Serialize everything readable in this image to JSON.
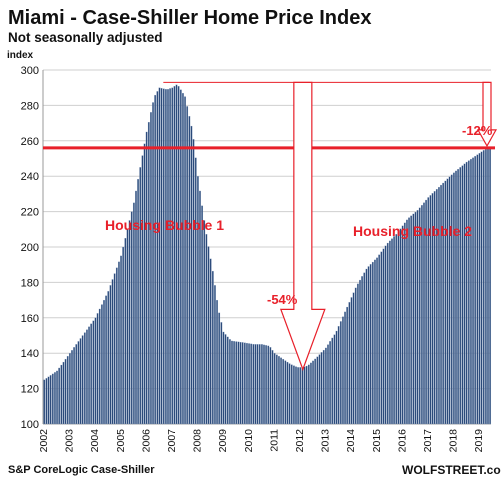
{
  "chart_data": {
    "type": "bar",
    "title": "Miami - Case-Shiller Home Price Index",
    "subtitle": "Not seasonally adjusted",
    "ylabel": "index",
    "ylim": [
      100,
      300
    ],
    "yticks": [
      100,
      120,
      140,
      160,
      180,
      200,
      220,
      240,
      260,
      280,
      300
    ],
    "xticks": [
      "2002",
      "2003",
      "2004",
      "2005",
      "2006",
      "2007",
      "2008",
      "2009",
      "2010",
      "2011",
      "2012",
      "2013",
      "2014",
      "2015",
      "2016",
      "2017",
      "2018",
      "2019"
    ],
    "grid": "horizontal",
    "bar_color": "#2b4a7a",
    "accent_color": "#e8202a",
    "anchors": [
      [
        2002.0,
        125
      ],
      [
        2002.5,
        130
      ],
      [
        2003.0,
        140
      ],
      [
        2003.5,
        150
      ],
      [
        2004.0,
        160
      ],
      [
        2004.5,
        175
      ],
      [
        2005.0,
        195
      ],
      [
        2005.5,
        225
      ],
      [
        2006.0,
        265
      ],
      [
        2006.3,
        285
      ],
      [
        2006.5,
        290
      ],
      [
        2006.8,
        289
      ],
      [
        2007.0,
        290
      ],
      [
        2007.2,
        292
      ],
      [
        2007.5,
        285
      ],
      [
        2007.8,
        265
      ],
      [
        2008.0,
        240
      ],
      [
        2008.3,
        210
      ],
      [
        2008.6,
        185
      ],
      [
        2008.8,
        165
      ],
      [
        2009.0,
        152
      ],
      [
        2009.3,
        147
      ],
      [
        2009.8,
        146
      ],
      [
        2010.2,
        145
      ],
      [
        2010.5,
        145
      ],
      [
        2010.8,
        144
      ],
      [
        2011.0,
        140
      ],
      [
        2011.3,
        137
      ],
      [
        2011.6,
        134
      ],
      [
        2011.9,
        132
      ],
      [
        2012.1,
        132
      ],
      [
        2012.3,
        133
      ],
      [
        2012.6,
        137
      ],
      [
        2013.0,
        143
      ],
      [
        2013.4,
        152
      ],
      [
        2013.8,
        165
      ],
      [
        2014.2,
        178
      ],
      [
        2014.6,
        188
      ],
      [
        2015.0,
        194
      ],
      [
        2015.4,
        202
      ],
      [
        2015.8,
        208
      ],
      [
        2016.2,
        216
      ],
      [
        2016.6,
        221
      ],
      [
        2017.0,
        228
      ],
      [
        2017.5,
        235
      ],
      [
        2018.0,
        242
      ],
      [
        2018.5,
        248
      ],
      [
        2019.0,
        253
      ],
      [
        2019.2,
        255
      ],
      [
        2019.4,
        256
      ]
    ],
    "reference_level": 256,
    "peak_level": 293,
    "trough_level": 132,
    "annotations": {
      "bubble1": "Housing Bubble 1",
      "bubble2": "Housing Bubble 2",
      "drop": "-54%",
      "gap": "-12%"
    }
  },
  "footer": {
    "source": "S&P CoreLogic Case-Shiller",
    "brand": "WOLFSTREET.com"
  }
}
